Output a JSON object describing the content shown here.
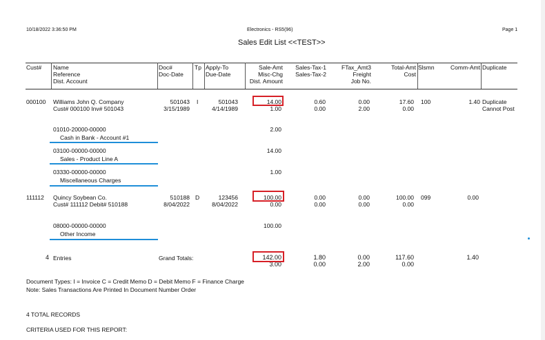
{
  "meta": {
    "datetime": "10/18/2022 3:36:50 PM",
    "company": "Electronics - RS5(96)",
    "page": "Page 1",
    "title": "Sales Edit List <<TEST>>"
  },
  "columns": {
    "cust": "Cust#",
    "name": [
      "Name",
      "Reference",
      "Dist. Account"
    ],
    "doc": [
      "Doc#",
      "Doc-Date"
    ],
    "tp": "Tp",
    "apply": [
      "Apply-To",
      "Due-Date"
    ],
    "sale": [
      "Sale-Amt",
      "Misc-Chg",
      "Dist. Amount"
    ],
    "tax": [
      "Sales-Tax-1",
      "Sales-Tax-2"
    ],
    "ftax": [
      "FTax_Amt3",
      "Freight",
      "Job No."
    ],
    "total": [
      "Total-Amt",
      "Cost"
    ],
    "slsmn": "Slsmn",
    "comm": "Comm-Amt",
    "dup": "Duplicate"
  },
  "records": [
    {
      "cust": "000100",
      "name": "Williams John Q. Company",
      "ref": "Cust# 000100   Inv# 501043",
      "doc": "501043",
      "docdate": "3/15/1989",
      "tp": "I",
      "apply": "501043",
      "due": "4/14/1989",
      "sale": "14.00",
      "misc": "1.00",
      "tax1": "0.60",
      "tax2": "0.00",
      "ftax": "0.00",
      "freight": "2.00",
      "total": "17.60",
      "cost": "0.00",
      "slsmn": "100",
      "comm": "1.40",
      "dup1": "Duplicate",
      "dup2": "Cannot Post",
      "dists": [
        {
          "acct": "01010-20000-00000",
          "desc": "Cash in Bank - Account #1",
          "amt": "2.00"
        },
        {
          "acct": "03100-00000-00000",
          "desc": "Sales - Product Line A",
          "amt": "14.00"
        },
        {
          "acct": "03330-00000-00000",
          "desc": "Miscellaneous Charges",
          "amt": "1.00"
        }
      ]
    },
    {
      "cust": "111112",
      "name": "Quincy Soybean Co.",
      "ref": "Cust# 111112 Debit# 510188",
      "doc": "510188",
      "docdate": "8/04/2022",
      "tp": "D",
      "apply": "123456",
      "due": "8/04/2022",
      "sale": "100.00",
      "misc": "0.00",
      "tax1": "0.00",
      "tax2": "0.00",
      "ftax": "0.00",
      "freight": "0.00",
      "total": "100.00",
      "cost": "0.00",
      "slsmn": "099",
      "comm": "0.00",
      "dists": [
        {
          "acct": "08000-00000-00000",
          "desc": "Other Income",
          "amt": "100.00"
        }
      ]
    }
  ],
  "totals": {
    "entries_count": "4",
    "entries_label": "Entries",
    "label": "Grand Totals:",
    "sale": "142.00",
    "misc": "3.00",
    "tax1": "1.80",
    "tax2": "0.00",
    "ftax": "0.00",
    "freight": "2.00",
    "total": "117.60",
    "cost": "0.00",
    "comm": "1.40"
  },
  "notes": {
    "doc_types": "Document Types:  I = Invoice  C = Credit Memo  D = Debit Memo  F = Finance Charge",
    "order": "Note: Sales Transactions Are Printed In Document Number Order",
    "total_records": "4 TOTAL RECORDS",
    "criteria": "CRITERIA USED FOR THIS REPORT:"
  }
}
